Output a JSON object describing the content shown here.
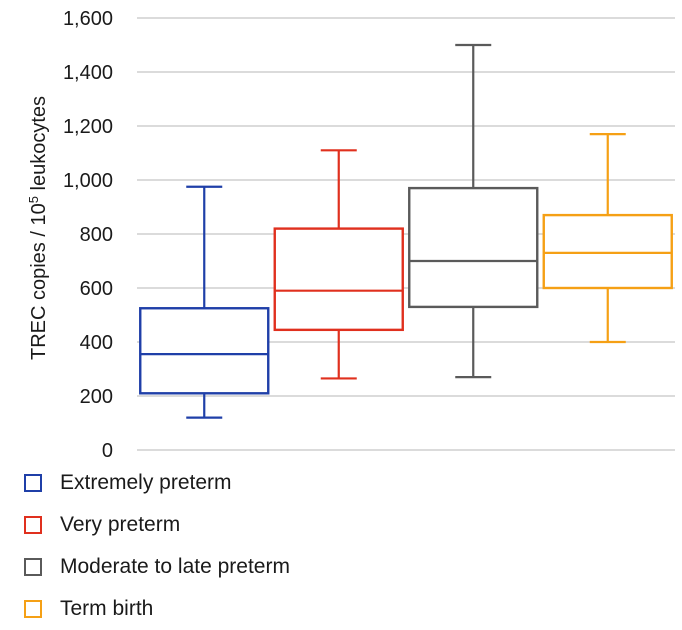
{
  "chart_data": {
    "type": "boxplot",
    "ylabel_main": "TREC copies / 10",
    "ylabel_sup": "5",
    "ylabel_tail": " leukocytes",
    "ylim": [
      0,
      1600
    ],
    "yticks": [
      0,
      200,
      400,
      600,
      800,
      1000,
      1200,
      1400,
      1600
    ],
    "ytick_labels": [
      "0",
      "200",
      "400",
      "600",
      "800",
      "1,000",
      "1,200",
      "1,400",
      "1,600"
    ],
    "grid": true,
    "legend_position": "bottom-left",
    "series": [
      {
        "name": "Extremely preterm",
        "color": "#1f3fa8",
        "min": 120,
        "q1": 210,
        "median": 355,
        "q3": 525,
        "max": 975
      },
      {
        "name": "Very preterm",
        "color": "#e0301e",
        "min": 265,
        "q1": 445,
        "median": 590,
        "q3": 820,
        "max": 1110
      },
      {
        "name": "Moderate to late preterm",
        "color": "#5a5a5a",
        "min": 270,
        "q1": 530,
        "median": 700,
        "q3": 970,
        "max": 1500
      },
      {
        "name": "Term birth",
        "color": "#f5a015",
        "min": 400,
        "q1": 600,
        "median": 730,
        "q3": 870,
        "max": 1170
      }
    ]
  }
}
